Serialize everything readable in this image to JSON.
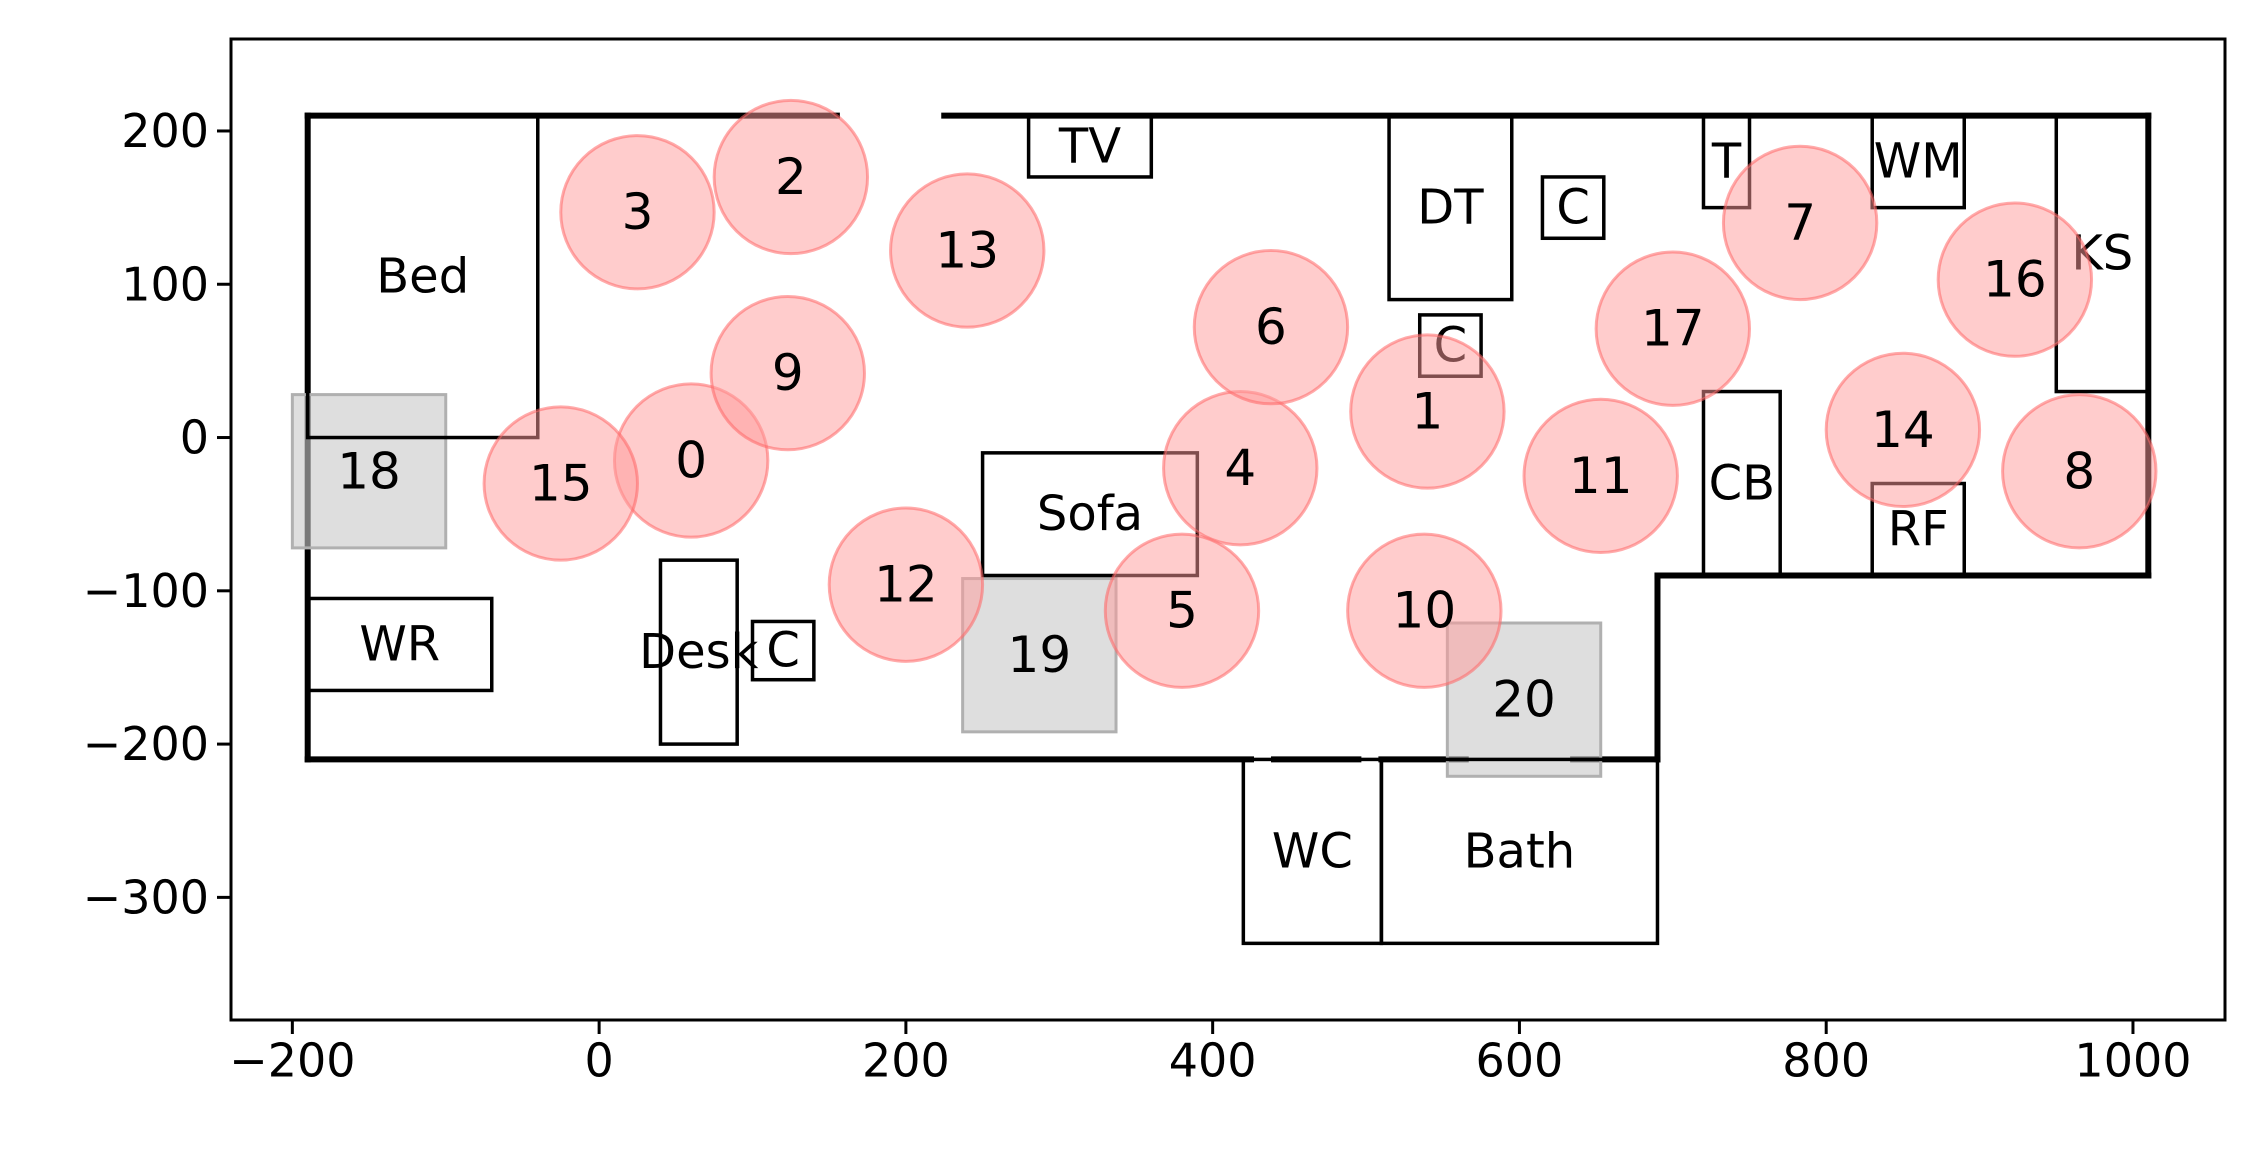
{
  "chart_data": {
    "type": "scatter",
    "title": "",
    "xlabel": "",
    "ylabel": "",
    "xlim": [
      -240,
      1060
    ],
    "ylim": [
      -380,
      260
    ],
    "xticks": [
      -200,
      0,
      200,
      400,
      600,
      800,
      1000
    ],
    "yticks": [
      200,
      100,
      0,
      -100,
      -200,
      -300
    ],
    "xtick_labels": [
      "−200",
      "0",
      "200",
      "400",
      "600",
      "800",
      "1000"
    ],
    "ytick_labels": [
      "200",
      "100",
      "0",
      "−100",
      "−200",
      "−300"
    ],
    "grid": false,
    "walls": [
      [
        [
          -190,
          210
        ],
        [
          155,
          210
        ]
      ],
      [
        [
          225,
          210
        ],
        [
          1010,
          210
        ]
      ],
      [
        [
          1010,
          210
        ],
        [
          1010,
          -90
        ]
      ],
      [
        [
          1010,
          -90
        ],
        [
          690,
          -90
        ]
      ],
      [
        [
          690,
          -90
        ],
        [
          690,
          -210
        ]
      ],
      [
        [
          690,
          -210
        ],
        [
          635,
          -210
        ]
      ],
      [
        [
          565,
          -210
        ],
        [
          510,
          -210
        ]
      ],
      [
        [
          495,
          -210
        ],
        [
          440,
          -210
        ]
      ],
      [
        [
          425,
          -210
        ],
        [
          -190,
          -210
        ]
      ],
      [
        [
          -190,
          -210
        ],
        [
          -190,
          210
        ]
      ]
    ],
    "furniture": [
      {
        "label": "Bed",
        "x0": -190,
        "y0": 0,
        "x1": -40,
        "y1": 210
      },
      {
        "label": "WR",
        "x0": -190,
        "y0": -165,
        "x1": -70,
        "y1": -105
      },
      {
        "label": "Desk",
        "x0": 40,
        "y0": -200,
        "x1": 90,
        "y1": -80
      },
      {
        "label": "C",
        "x0": 100,
        "y0": -158,
        "x1": 140,
        "y1": -120
      },
      {
        "label": "TV",
        "x0": 280,
        "y0": 170,
        "x1": 360,
        "y1": 210
      },
      {
        "label": "Sofa",
        "x0": 250,
        "y0": -90,
        "x1": 390,
        "y1": -10
      },
      {
        "label": "DT",
        "x0": 515,
        "y0": 90,
        "x1": 595,
        "y1": 210
      },
      {
        "label": "C",
        "x0": 615,
        "y0": 130,
        "x1": 655,
        "y1": 170
      },
      {
        "label": "C",
        "x0": 535,
        "y0": 40,
        "x1": 575,
        "y1": 80
      },
      {
        "label": "T",
        "x0": 720,
        "y0": 150,
        "x1": 750,
        "y1": 210
      },
      {
        "label": "WM",
        "x0": 830,
        "y0": 150,
        "x1": 890,
        "y1": 210
      },
      {
        "label": "KS",
        "x0": 950,
        "y0": 30,
        "x1": 1010,
        "y1": 210
      },
      {
        "label": "CB",
        "x0": 720,
        "y0": -90,
        "x1": 770,
        "y1": 30
      },
      {
        "label": "RF",
        "x0": 830,
        "y0": -90,
        "x1": 890,
        "y1": -30
      },
      {
        "label": "WC",
        "x0": 420,
        "y0": -330,
        "x1": 510,
        "y1": -210
      },
      {
        "label": "Bath",
        "x0": 510,
        "y0": -330,
        "x1": 690,
        "y1": -210
      }
    ],
    "circles": [
      {
        "label": "0",
        "x": 60,
        "y": -15
      },
      {
        "label": "1",
        "x": 540,
        "y": 17
      },
      {
        "label": "2",
        "x": 125,
        "y": 170
      },
      {
        "label": "3",
        "x": 25,
        "y": 147
      },
      {
        "label": "4",
        "x": 418,
        "y": -20
      },
      {
        "label": "5",
        "x": 380,
        "y": -113
      },
      {
        "label": "6",
        "x": 438,
        "y": 72
      },
      {
        "label": "7",
        "x": 783,
        "y": 140
      },
      {
        "label": "8",
        "x": 965,
        "y": -22
      },
      {
        "label": "9",
        "x": 123,
        "y": 42
      },
      {
        "label": "10",
        "x": 538,
        "y": -113
      },
      {
        "label": "11",
        "x": 653,
        "y": -25
      },
      {
        "label": "12",
        "x": 200,
        "y": -96
      },
      {
        "label": "13",
        "x": 240,
        "y": 122
      },
      {
        "label": "14",
        "x": 850,
        "y": 5
      },
      {
        "label": "15",
        "x": -25,
        "y": -30
      },
      {
        "label": "16",
        "x": 923,
        "y": 103
      },
      {
        "label": "17",
        "x": 700,
        "y": 71
      }
    ],
    "circle_radius": 50,
    "squares": [
      {
        "label": "18",
        "x": -150,
        "y": -22
      },
      {
        "label": "19",
        "x": 287,
        "y": -142
      },
      {
        "label": "20",
        "x": 603,
        "y": -171
      }
    ],
    "square_half_size": 50,
    "colors": {
      "circle_fill": "#ff9999",
      "circle_stroke": "#ff6666",
      "square_fill": "#c8c8c8",
      "wall": "#000000",
      "frame": "#000000"
    }
  }
}
